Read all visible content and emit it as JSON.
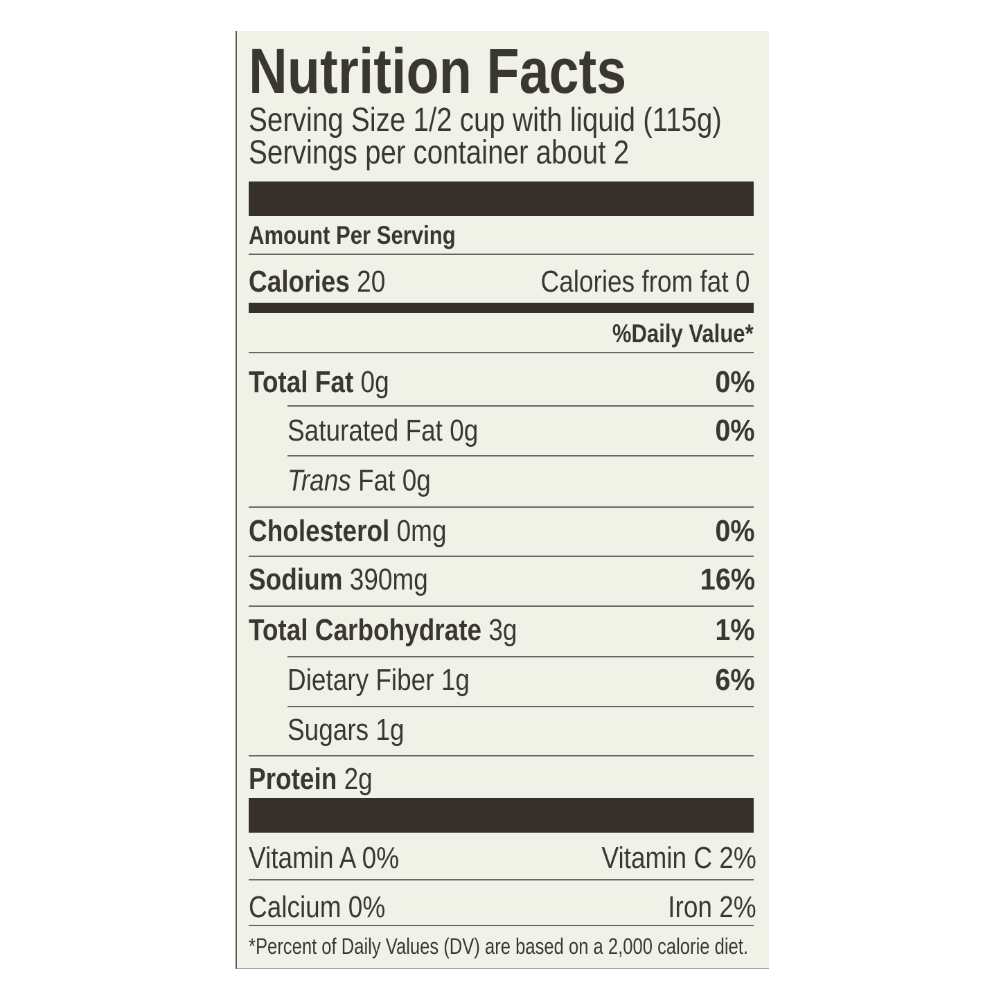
{
  "title": "Nutrition Facts",
  "serving_size": "Serving Size 1/2 cup with liquid (115g)",
  "servings_per_container": "Servings per container about 2",
  "amount_per_serving": "Amount Per Serving",
  "calories": {
    "label": "Calories",
    "value": "20",
    "from_fat": "Calories from fat 0"
  },
  "daily_value_header": "%Daily Value*",
  "nutrients": [
    {
      "label": "Total Fat",
      "amount": "0g",
      "dv": "0%"
    },
    {
      "label": "Saturated Fat",
      "amount": "0g",
      "dv": "0%"
    },
    {
      "label": "Trans",
      "amount": "Fat 0g",
      "dv": ""
    },
    {
      "label": "Cholesterol",
      "amount": "0mg",
      "dv": "0%"
    },
    {
      "label": "Sodium",
      "amount": "390mg",
      "dv": "16%"
    },
    {
      "label": "Total Carbohydrate",
      "amount": "3g",
      "dv": "1%"
    },
    {
      "label": "Dietary Fiber",
      "amount": "1g",
      "dv": "6%"
    },
    {
      "label": "Sugars",
      "amount": "1g",
      "dv": ""
    },
    {
      "label": "Protein",
      "amount": "2g",
      "dv": ""
    }
  ],
  "vitamins": [
    {
      "left": "Vitamin A 0%",
      "right": "Vitamin C 2%"
    },
    {
      "left": "Calcium 0%",
      "right": "Iron 2%"
    }
  ],
  "footnote": "*Percent of Daily Values (DV) are based on a 2,000 calorie diet."
}
